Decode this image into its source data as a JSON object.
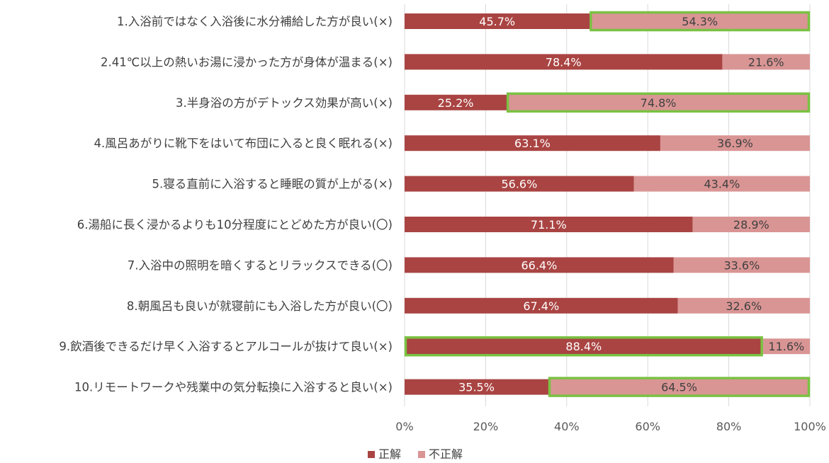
{
  "chart_data": {
    "type": "bar",
    "orientation": "horizontal",
    "stacked": true,
    "title": "",
    "xlabel": "",
    "ylabel": "",
    "xlim": [
      0,
      100
    ],
    "x_ticks": [
      "0%",
      "20%",
      "40%",
      "60%",
      "80%",
      "100%"
    ],
    "grid": "vertical",
    "legend_position": "bottom",
    "categories": [
      "1.入浴前ではなく入浴後に水分補給した方が良い(×)",
      "2.41℃以上の熱いお湯に浸かった方が身体が温まる(×)",
      "3.半身浴の方がデトックス効果が高い(×)",
      "4.風呂あがりに靴下をはいて布団に入ると良く眠れる(×)",
      "5.寝る直前に入浴すると睡眠の質が上がる(×)",
      "6.湯船に長く浸かるよりも10分程度にとどめた方が良い(〇)",
      "7.入浴中の照明を暗くするとリラックスできる(〇)",
      "8.朝風呂も良いが就寝前にも入浴した方が良い(〇)",
      "9.飲酒後できるだけ早く入浴するとアルコールが抜けて良い(×)",
      "10.リモートワークや残業中の気分転換に入浴すると良い(×)"
    ],
    "series": [
      {
        "name": "正解",
        "color": "#a94442",
        "label_color": "#ffffff",
        "values": [
          45.7,
          78.4,
          25.2,
          63.1,
          56.6,
          71.1,
          66.4,
          67.4,
          88.4,
          35.5
        ],
        "labels": [
          "45.7%",
          "78.4%",
          "25.2%",
          "63.1%",
          "56.6%",
          "71.1%",
          "66.4%",
          "67.4%",
          "88.4%",
          "35.5%"
        ]
      },
      {
        "name": "不正解",
        "color": "#d99594",
        "label_color": "#404040",
        "values": [
          54.3,
          21.6,
          74.8,
          36.9,
          43.4,
          28.9,
          33.6,
          32.6,
          11.6,
          64.5
        ],
        "labels": [
          "54.3%",
          "21.6%",
          "74.8%",
          "36.9%",
          "43.4%",
          "28.9%",
          "33.6%",
          "32.6%",
          "11.6%",
          "64.5%"
        ]
      }
    ],
    "highlights": [
      {
        "category_index": 0,
        "series_index": 1
      },
      {
        "category_index": 2,
        "series_index": 1
      },
      {
        "category_index": 8,
        "series_index": 0
      },
      {
        "category_index": 9,
        "series_index": 1
      }
    ],
    "highlight_color": "#7ac143",
    "grid_color": "#d9d9d9"
  }
}
